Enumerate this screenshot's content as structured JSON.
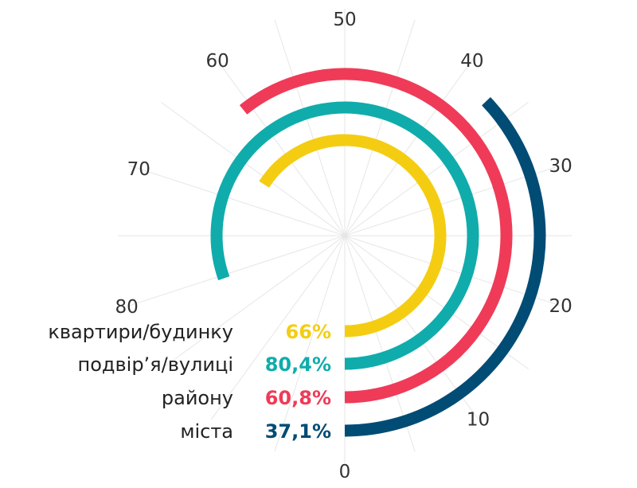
{
  "chart_data": {
    "type": "radial-bar",
    "axis": {
      "min": 0,
      "max": 100,
      "ticks": [
        0,
        10,
        20,
        30,
        40,
        50,
        60,
        70,
        80
      ]
    },
    "categories": [
      "квартири/будинку",
      "подвір’я/вулиці",
      "району",
      "міста"
    ],
    "values": [
      66,
      80.4,
      60.8,
      37.1
    ],
    "value_labels": [
      "66%",
      "80,4%",
      "60,8%",
      "37,1%"
    ],
    "colors": [
      "#F4CD12",
      "#10ACAC",
      "#EF3B58",
      "#004C74"
    ],
    "grid": true,
    "grid_color": "#e6e6e6"
  }
}
